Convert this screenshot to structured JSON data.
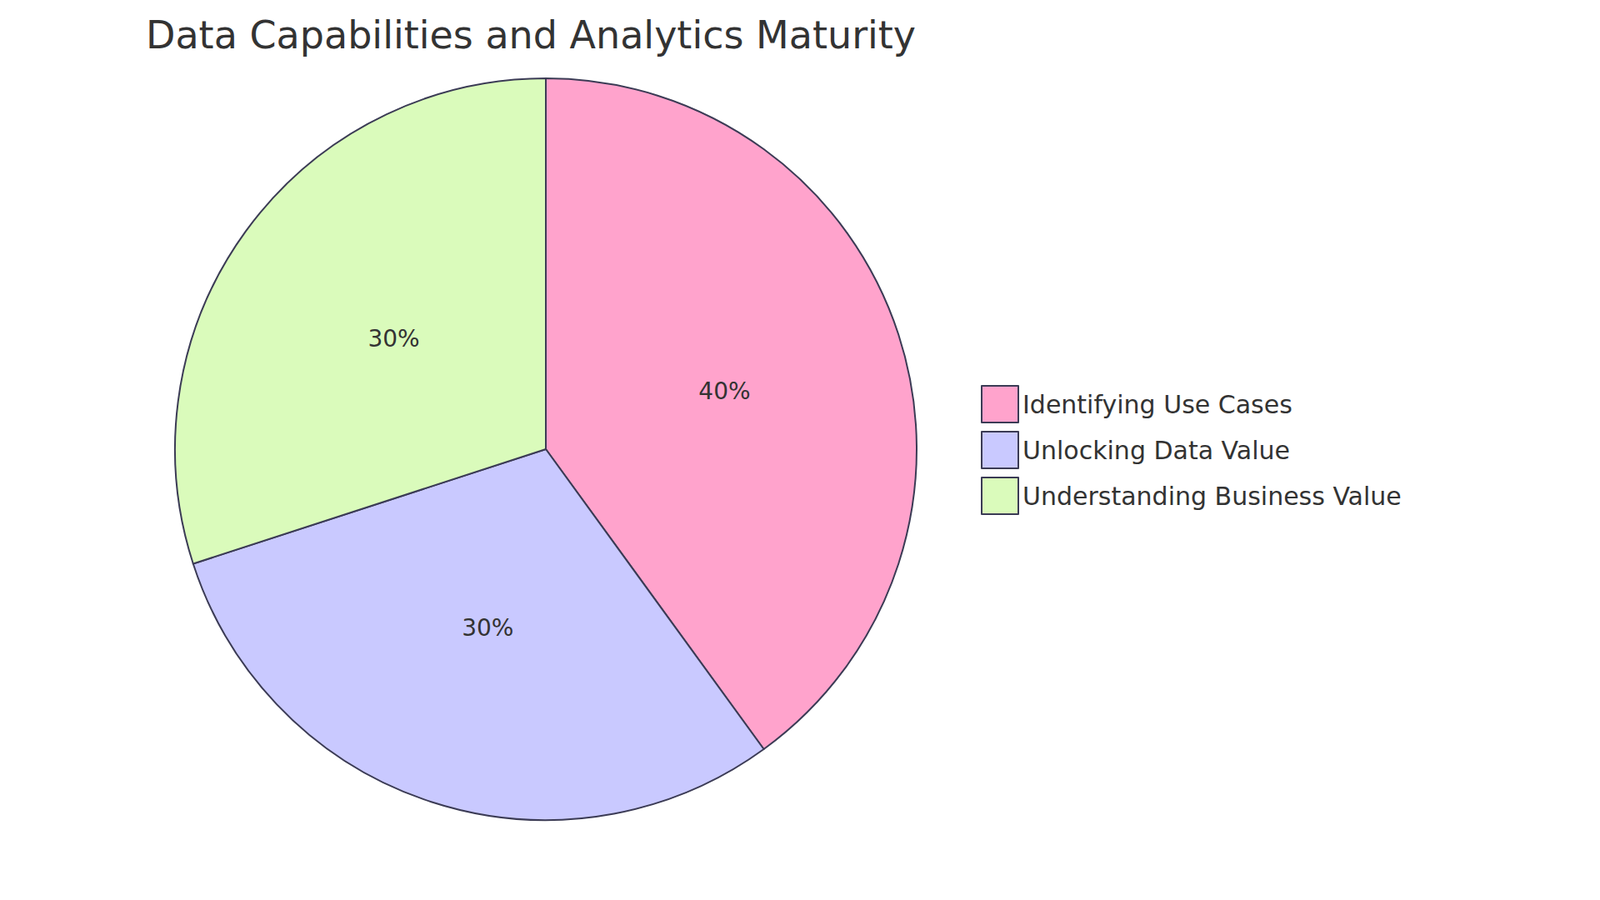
{
  "chart_data": {
    "type": "pie",
    "title": "Data Capabilities and Analytics Maturity",
    "categories": [
      "Identifying Use Cases",
      "Unlocking Data Value",
      "Understanding Business Value"
    ],
    "values": [
      40,
      30,
      30
    ],
    "value_labels": [
      "40%",
      "30%",
      "30%"
    ],
    "colors": [
      "#ffa3cc",
      "#c9c9ff",
      "#dafbbb"
    ],
    "data_labels": true,
    "legend": "right"
  }
}
